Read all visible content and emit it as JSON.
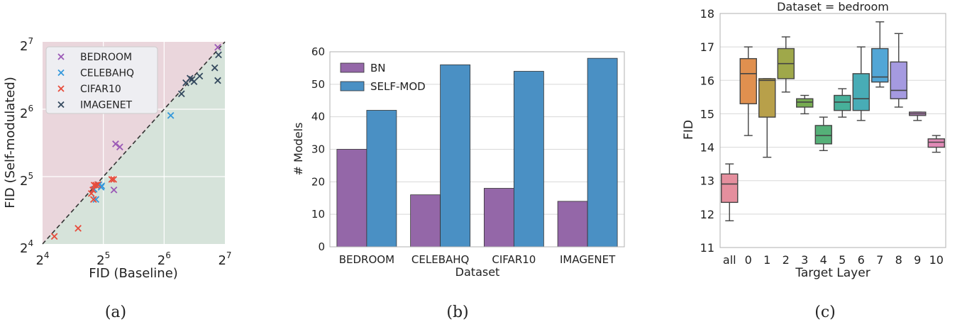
{
  "chart_data": [
    {
      "type": "scatter",
      "caption": "(a)",
      "xlabel": "FID (Baseline)",
      "ylabel": "FID (Self-modulated)",
      "scale": "log2",
      "xlim": [
        16,
        128
      ],
      "ylim": [
        16,
        128
      ],
      "tick_base": "2",
      "tick_exponents": [
        "4",
        "5",
        "6",
        "7"
      ],
      "diagonal": "y = x (dashed)",
      "colors": {
        "upper_region": "#ead6dc",
        "lower_region": "#d6e3da"
      },
      "legend": "top-left",
      "series": [
        {
          "name": "BEDROOM",
          "color": "#9b59b6",
          "points": [
            [
              118,
              121
            ],
            [
              36.8,
              44.8
            ],
            [
              38.6,
              43.4
            ],
            [
              36.1,
              27.9
            ]
          ]
        },
        {
          "name": "CELEBAHQ",
          "color": "#3498db",
          "points": [
            [
              69,
              60
            ],
            [
              31.4,
              29.1
            ],
            [
              29.4,
              25.3
            ],
            [
              28.8,
              28.1
            ],
            [
              30.4,
              29.4
            ],
            [
              31.2,
              28.7
            ]
          ]
        },
        {
          "name": "CIFAR10",
          "color": "#e74c3c",
          "points": [
            [
              18.3,
              17.3
            ],
            [
              24.0,
              18.8
            ],
            [
              35.2,
              31.1
            ],
            [
              36.0,
              31.1
            ],
            [
              28.4,
              27.9
            ],
            [
              28.8,
              29.3
            ],
            [
              29.4,
              29.3
            ],
            [
              30.0,
              29.5
            ],
            [
              27.9,
              26.9
            ],
            [
              28.6,
              25.3
            ]
          ]
        },
        {
          "name": "IMAGENET",
          "color": "#34495e",
          "points": [
            [
              114,
              98
            ],
            [
              119,
              112
            ],
            [
              118,
              86
            ],
            [
              96,
              90
            ],
            [
              90,
              85
            ],
            [
              88,
              87
            ],
            [
              86,
              88
            ],
            [
              82,
              84
            ],
            [
              78,
              75
            ]
          ]
        }
      ]
    },
    {
      "type": "bar",
      "caption": "(b)",
      "xlabel": "Dataset",
      "ylabel": "# Models",
      "ylim": [
        0,
        60
      ],
      "yticks": [
        "0",
        "10",
        "20",
        "30",
        "40",
        "50",
        "60"
      ],
      "categories": [
        "BEDROOM",
        "CELEBAHQ",
        "CIFAR10",
        "IMAGENET"
      ],
      "legend": "top-left",
      "series": [
        {
          "name": "BN",
          "color": "#9467a8",
          "values": [
            30,
            16,
            18,
            14
          ]
        },
        {
          "name": "SELF-MOD",
          "color": "#4a90c4",
          "values": [
            42,
            56,
            54,
            58
          ]
        }
      ]
    },
    {
      "type": "box",
      "caption": "(c)",
      "title": "Dataset = bedroom",
      "xlabel": "Target Layer",
      "ylabel": "FID",
      "ylim": [
        11,
        18
      ],
      "yticks": [
        "11",
        "12",
        "13",
        "14",
        "15",
        "16",
        "17",
        "18"
      ],
      "categories": [
        "all",
        "0",
        "1",
        "2",
        "3",
        "4",
        "5",
        "6",
        "7",
        "8",
        "9",
        "10"
      ],
      "boxes": [
        {
          "min": 11.8,
          "q1": 12.35,
          "median": 12.9,
          "q3": 13.2,
          "max": 13.5,
          "color": "#e58f9e"
        },
        {
          "min": 14.35,
          "q1": 15.3,
          "median": 16.2,
          "q3": 16.65,
          "max": 17.0,
          "color": "#e0904f"
        },
        {
          "min": 13.7,
          "q1": 14.9,
          "median": 16.0,
          "q3": 16.05,
          "max": 16.05,
          "color": "#b8a04a"
        },
        {
          "min": 15.65,
          "q1": 16.05,
          "median": 16.5,
          "q3": 16.95,
          "max": 17.3,
          "color": "#9fa84a"
        },
        {
          "min": 15.0,
          "q1": 15.2,
          "median": 15.35,
          "q3": 15.45,
          "max": 15.55,
          "color": "#77ac52"
        },
        {
          "min": 13.9,
          "q1": 14.1,
          "median": 14.35,
          "q3": 14.65,
          "max": 14.9,
          "color": "#55b078"
        },
        {
          "min": 14.9,
          "q1": 15.1,
          "median": 15.35,
          "q3": 15.55,
          "max": 15.75,
          "color": "#47b09a"
        },
        {
          "min": 14.8,
          "q1": 15.1,
          "median": 15.45,
          "q3": 16.2,
          "max": 17.0,
          "color": "#48acb6"
        },
        {
          "min": 15.8,
          "q1": 15.95,
          "median": 16.1,
          "q3": 16.95,
          "max": 17.75,
          "color": "#52a6d6"
        },
        {
          "min": 15.2,
          "q1": 15.45,
          "median": 15.7,
          "q3": 16.55,
          "max": 17.4,
          "color": "#a59ae0"
        },
        {
          "min": 14.8,
          "q1": 14.95,
          "median": 15.0,
          "q3": 15.05,
          "max": 15.05,
          "color": "#d18fd4"
        },
        {
          "min": 13.85,
          "q1": 14.0,
          "median": 14.15,
          "q3": 14.25,
          "max": 14.35,
          "color": "#e08ab6"
        }
      ]
    }
  ]
}
